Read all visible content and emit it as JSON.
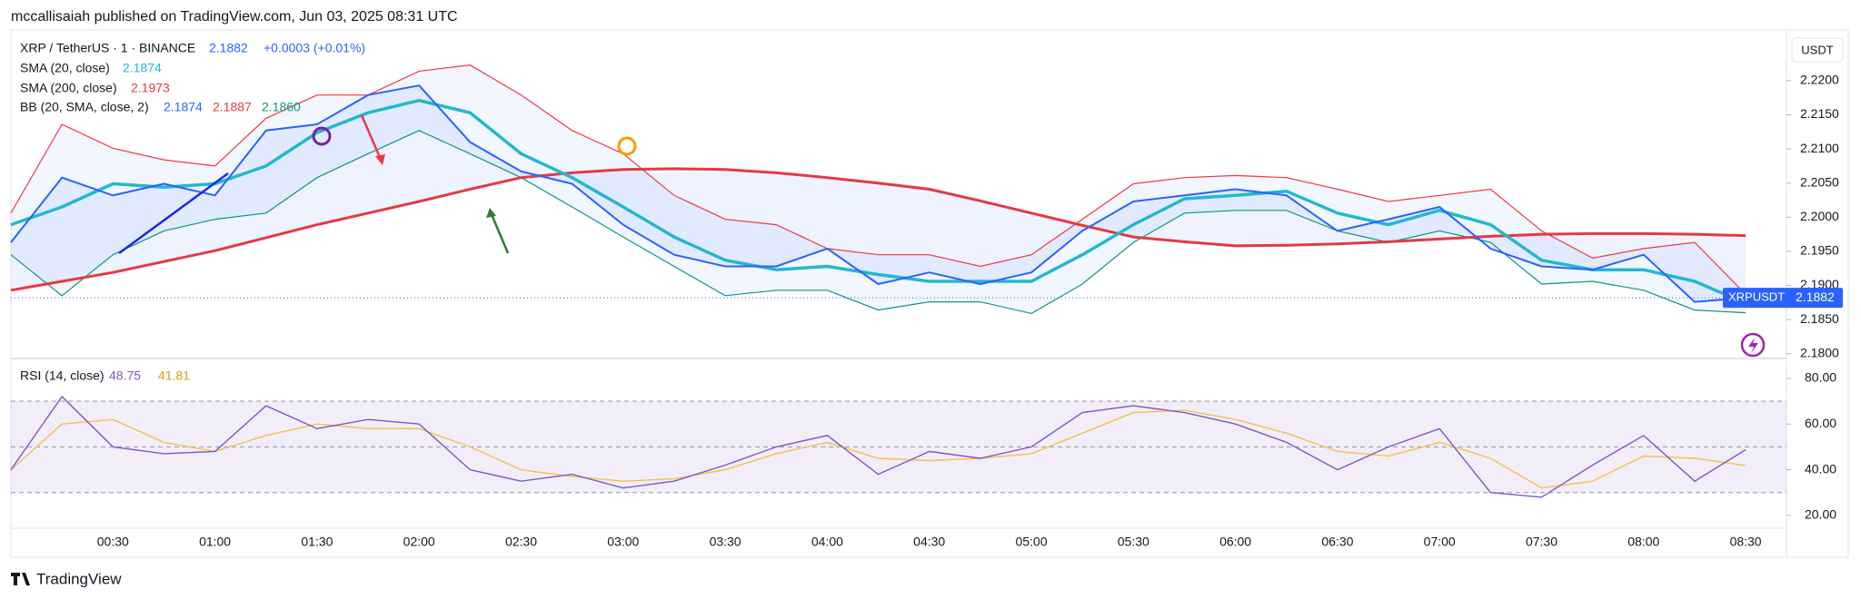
{
  "header": {
    "published": "mccallisaiah published on TradingView.com, Jun 03, 2025 08:31 UTC"
  },
  "footer": {
    "brand": "TradingView"
  },
  "chart_data": {
    "type": "line",
    "categories": [
      null,
      null,
      "00:30",
      null,
      "01:00",
      null,
      "01:30",
      null,
      "02:00",
      null,
      "02:30",
      null,
      "03:00",
      null,
      "03:30",
      null,
      "04:00",
      null,
      "04:30",
      null,
      "05:00",
      null,
      "05:30",
      null,
      "06:00",
      null,
      "06:30",
      null,
      "07:00",
      null,
      "07:30",
      null,
      "08:00",
      null,
      "08:30"
    ],
    "legend": {
      "symbol": "XRP / TetherUS · 1 · BINANCE",
      "price": "2.1882",
      "change": "+0.0003 (+0.01%)",
      "sma20": "2.1874",
      "sma200": "2.1973",
      "bb_name": "BB (20, SMA, close, 2)",
      "bb_basis": "2.1874",
      "bb_upper": "2.1887",
      "bb_lower": "2.1860",
      "rsi_name": "RSI (14, close)",
      "rsi": "48.75",
      "rsi_ma": "41.81"
    },
    "price_pane": {
      "currency": "USDT",
      "ticker": "XRPUSDT",
      "ylim": [
        2.1797,
        2.2269
      ],
      "yticks": [
        {
          "value": 2.18,
          "label": "2.1800"
        },
        {
          "value": 2.185,
          "label": "2.1850"
        },
        {
          "value": 2.19,
          "label": "2.1900"
        },
        {
          "value": 2.195,
          "label": "2.1950"
        },
        {
          "value": 2.2,
          "label": "2.2000"
        },
        {
          "value": 2.205,
          "label": "2.2050"
        },
        {
          "value": 2.21,
          "label": "2.2100"
        },
        {
          "value": 2.215,
          "label": "2.2150"
        },
        {
          "value": 2.22,
          "label": "2.2200"
        }
      ],
      "grid": false,
      "bollinger": {
        "upper": {
          "color": "#f23645",
          "values": [
            2.2006,
            2.2136,
            2.2101,
            2.2084,
            2.2075,
            2.2145,
            2.2179,
            2.2179,
            2.2214,
            2.2223,
            2.2179,
            2.2127,
            2.2093,
            2.2032,
            2.1997,
            2.1989,
            2.1954,
            2.1945,
            2.1945,
            2.1928,
            2.1945,
            2.1997,
            2.2049,
            2.2058,
            2.2061,
            2.2058,
            2.2041,
            2.2023,
            2.2032,
            2.2041,
            2.198,
            2.194,
            2.1954,
            2.1963,
            2.1887
          ]
        },
        "lower": {
          "color": "#089981",
          "values": [
            2.1945,
            2.1885,
            2.1945,
            2.198,
            2.1997,
            2.2006,
            2.2058,
            2.2093,
            2.2127,
            2.2093,
            2.2058,
            2.2015,
            2.1971,
            2.1928,
            2.1885,
            2.1893,
            2.1893,
            2.1864,
            2.1876,
            2.1876,
            2.1859,
            2.1902,
            2.1963,
            2.2006,
            2.201,
            2.201,
            2.198,
            2.1963,
            2.198,
            2.1963,
            2.1902,
            2.1906,
            2.1893,
            2.1864,
            2.186
          ]
        },
        "fill": "#2962ff"
      },
      "series": [
        {
          "name": "SMA (200, close)",
          "color": "#e53945",
          "width": 3,
          "values": [
            2.1893,
            2.1906,
            2.1919,
            2.1935,
            2.1951,
            2.197,
            2.1989,
            2.2006,
            2.2023,
            2.2041,
            2.2058,
            2.2065,
            2.207,
            2.2071,
            2.207,
            2.2065,
            2.2058,
            2.205,
            2.2041,
            2.2024,
            2.2006,
            2.1988,
            2.1971,
            2.1964,
            2.1958,
            2.1959,
            2.1961,
            2.1964,
            2.1968,
            2.1972,
            2.1975,
            2.1976,
            2.1976,
            2.1975,
            2.1973
          ]
        },
        {
          "name": "SMA (20, close)",
          "color": "#22b8cf",
          "width": 3.5,
          "values": [
            2.1989,
            2.2015,
            2.2049,
            2.2044,
            2.2049,
            2.2075,
            2.2124,
            2.2153,
            2.2171,
            2.2153,
            2.2093,
            2.2058,
            2.2015,
            2.1971,
            2.1937,
            2.1923,
            2.1928,
            2.1916,
            2.1906,
            2.1906,
            2.1906,
            2.1945,
            2.1989,
            2.2027,
            2.2032,
            2.2038,
            2.2006,
            2.1989,
            2.201,
            2.1989,
            2.1937,
            2.1923,
            2.1923,
            2.1906,
            2.1874
          ]
        },
        {
          "name": "XRP / TetherUS · 1 · BINANCE",
          "color": "#2962ff",
          "width": 2,
          "values": [
            2.1963,
            2.2058,
            2.2032,
            2.2049,
            2.2032,
            2.2127,
            2.2136,
            2.2179,
            2.2193,
            2.211,
            2.2067,
            2.2049,
            2.1989,
            2.1945,
            2.1928,
            2.1928,
            2.1954,
            2.1902,
            2.1919,
            2.1902,
            2.1919,
            2.198,
            2.2023,
            2.2032,
            2.2041,
            2.2032,
            2.198,
            2.1997,
            2.2015,
            2.1954,
            2.1928,
            2.1923,
            2.1945,
            2.1876,
            2.1882
          ]
        }
      ]
    },
    "rsi_pane": {
      "ylim": [
        14.8,
        87.5
      ],
      "yticks": [
        {
          "value": 20,
          "label": "20.00"
        },
        {
          "value": 40,
          "label": "40.00"
        },
        {
          "value": 60,
          "label": "60.00"
        },
        {
          "value": 80,
          "label": "80.00"
        }
      ],
      "band": [
        30,
        70
      ],
      "midline": 50,
      "band_color": "#7e57c2",
      "series": [
        {
          "color": "#7e57c2",
          "values": [
            40,
            72,
            50,
            47,
            48,
            68,
            58,
            62,
            60,
            40,
            35,
            38,
            32,
            35,
            42,
            50,
            55,
            38,
            48,
            45,
            50,
            65,
            68,
            65,
            60,
            52,
            40,
            50,
            58,
            30,
            28,
            42,
            55,
            35,
            48.75
          ]
        },
        {
          "color": "#f7c04a",
          "values": [
            40,
            60,
            62,
            52,
            48,
            55,
            60,
            58,
            58,
            50,
            40,
            37,
            35,
            36,
            40,
            47,
            52,
            45,
            44,
            45,
            47,
            56,
            65,
            66,
            62,
            56,
            48,
            46,
            52,
            45,
            32,
            35,
            46,
            45,
            41.81
          ]
        }
      ]
    }
  }
}
